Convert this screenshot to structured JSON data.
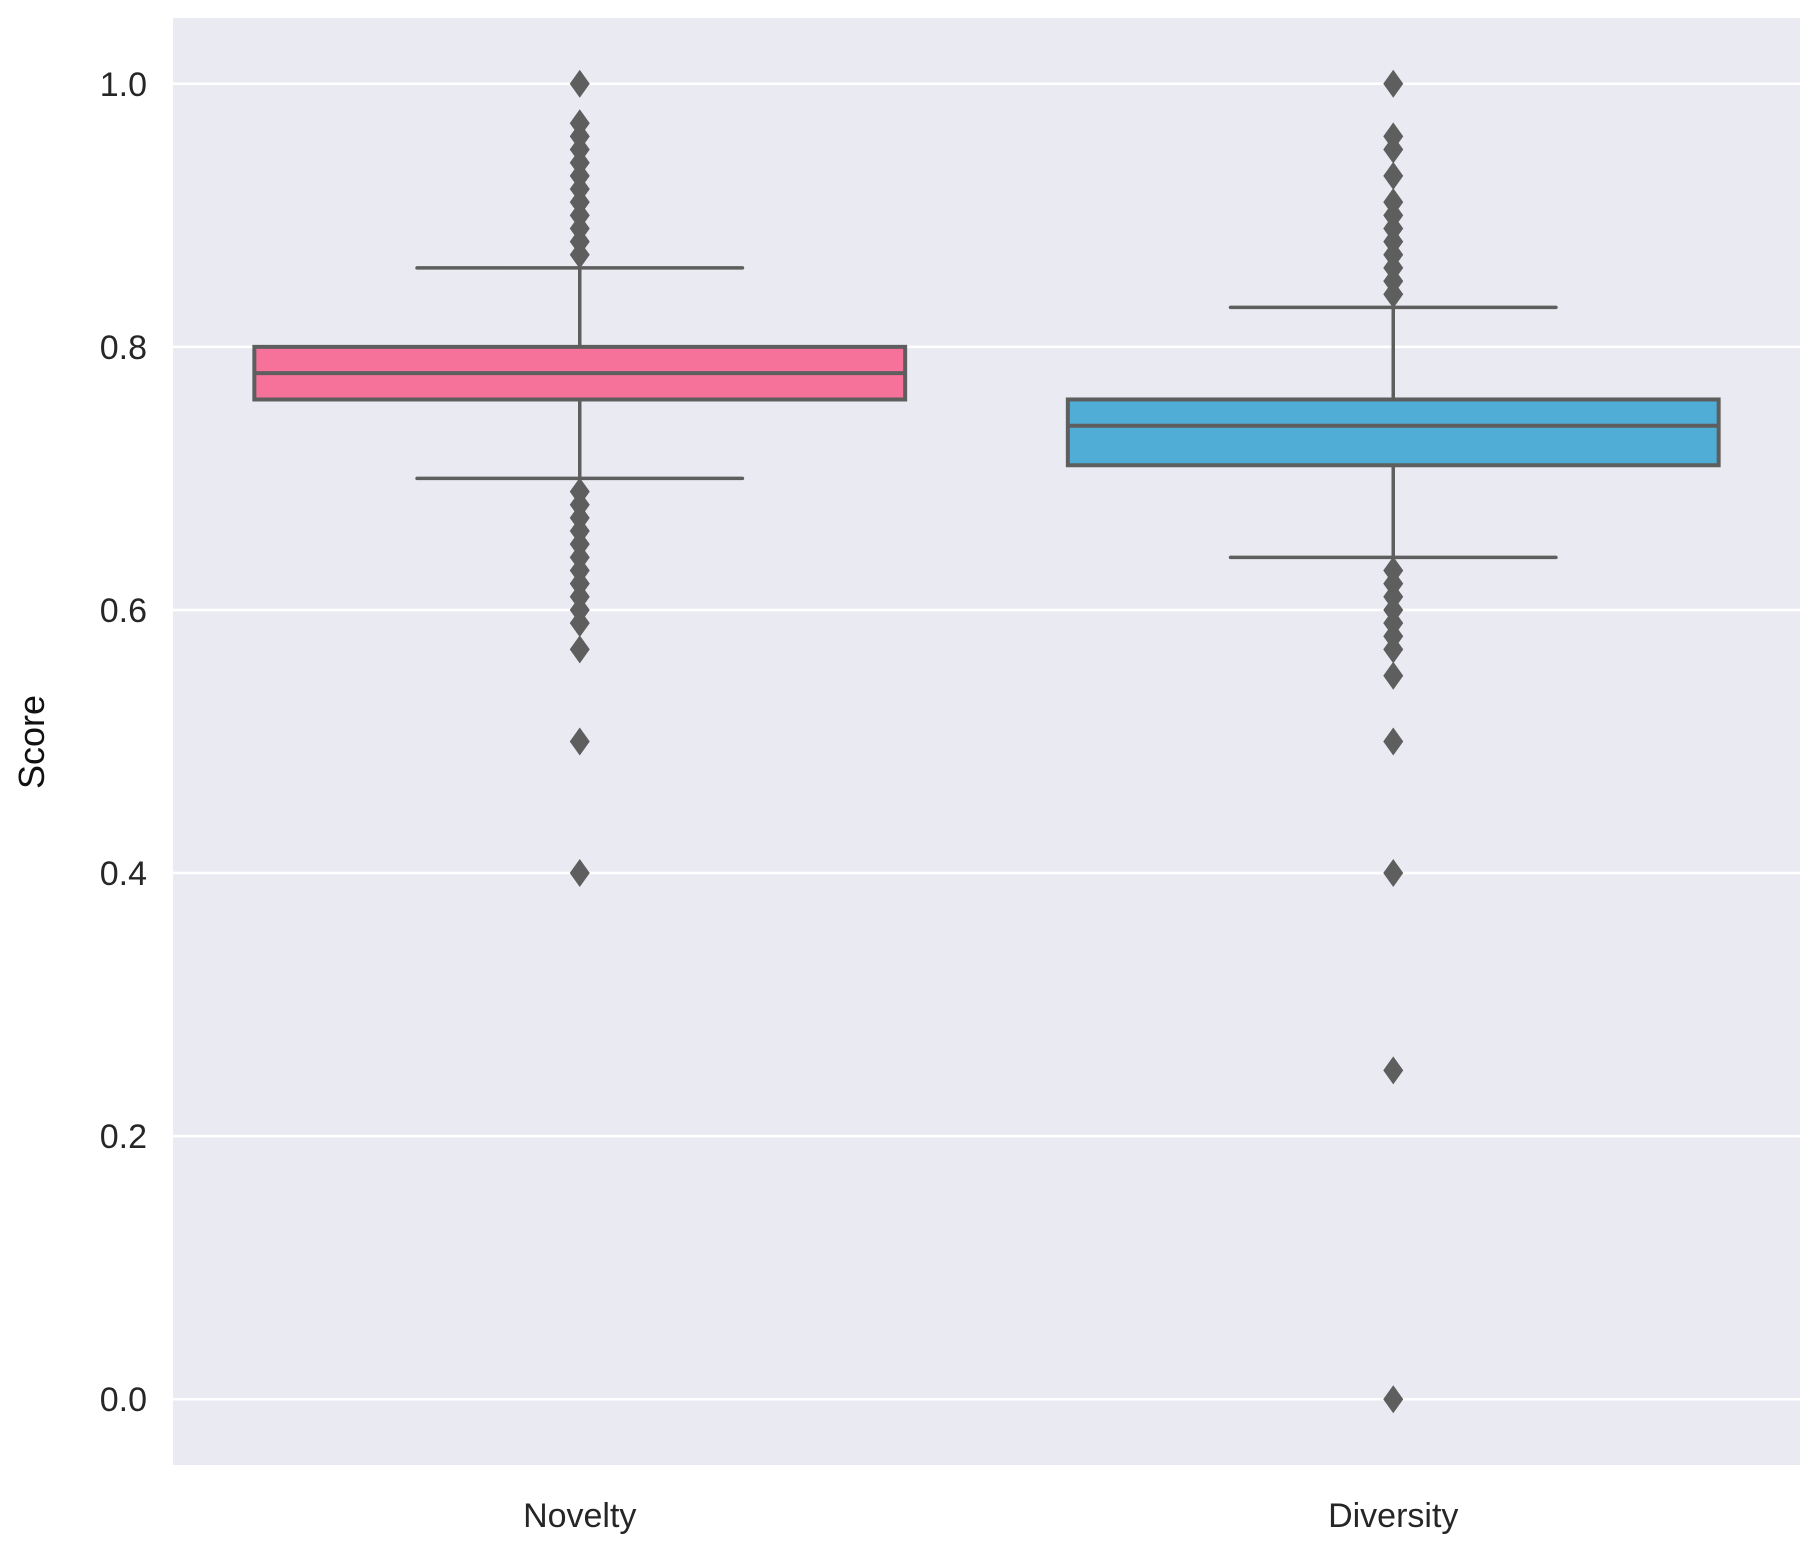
{
  "chart_data": {
    "type": "box",
    "title": "",
    "xlabel": "",
    "ylabel": "Score",
    "ylim": [
      -0.05,
      1.05
    ],
    "yticks": [
      0.0,
      0.2,
      0.4,
      0.6,
      0.8,
      1.0
    ],
    "ytick_labels": [
      "0.0",
      "0.2",
      "0.4",
      "0.6",
      "0.8",
      "1.0"
    ],
    "grid": true,
    "legend": "none",
    "categories": [
      "Novelty",
      "Diversity"
    ],
    "series": [
      {
        "name": "Novelty",
        "color": "#f7729a",
        "whisker_low": 0.7,
        "q1": 0.76,
        "median": 0.78,
        "q3": 0.8,
        "whisker_high": 0.86,
        "outliers": [
          1.0,
          0.97,
          0.96,
          0.95,
          0.94,
          0.93,
          0.92,
          0.91,
          0.9,
          0.89,
          0.88,
          0.87,
          0.69,
          0.68,
          0.67,
          0.66,
          0.65,
          0.64,
          0.63,
          0.62,
          0.61,
          0.6,
          0.59,
          0.57,
          0.5,
          0.4
        ]
      },
      {
        "name": "Diversity",
        "color": "#50aed6",
        "whisker_low": 0.64,
        "q1": 0.71,
        "median": 0.74,
        "q3": 0.76,
        "whisker_high": 0.83,
        "outliers": [
          1.0,
          0.96,
          0.95,
          0.93,
          0.91,
          0.9,
          0.89,
          0.88,
          0.87,
          0.86,
          0.85,
          0.84,
          0.63,
          0.62,
          0.61,
          0.6,
          0.59,
          0.58,
          0.57,
          0.55,
          0.5,
          0.4,
          0.25,
          0.0
        ]
      }
    ],
    "colors": {
      "background": "#eaeaf2",
      "grid": "#ffffff",
      "line": "#5e5e5e"
    }
  }
}
